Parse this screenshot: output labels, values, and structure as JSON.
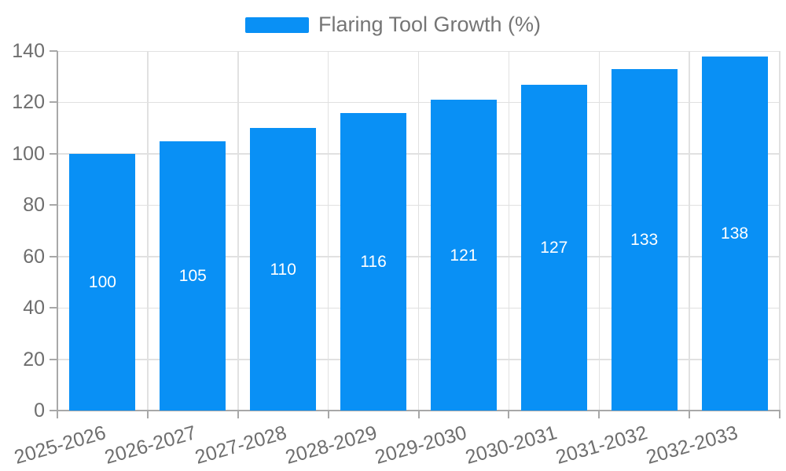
{
  "chart_data": {
    "type": "bar",
    "title": "Flaring Tool Growth (%)",
    "legend": {
      "label": "Flaring Tool Growth (%)",
      "position": "top-center"
    },
    "categories": [
      "2025-2026",
      "2026-2027",
      "2027-2028",
      "2028-2029",
      "2029-2030",
      "2030-2031",
      "2031-2032",
      "2032-2033"
    ],
    "series": [
      {
        "name": "Flaring Tool Growth (%)",
        "values": [
          100,
          105,
          110,
          116,
          121,
          127,
          133,
          138
        ]
      }
    ],
    "value_labels": [
      "100",
      "105",
      "110",
      "116",
      "121",
      "127",
      "133",
      "138"
    ],
    "xlabel": "",
    "ylabel": "",
    "ylim": [
      0,
      140
    ],
    "yticks": [
      0,
      20,
      40,
      60,
      80,
      100,
      120,
      140
    ],
    "grid": true,
    "colors": {
      "bar": "#0990f5",
      "grid": "#e1e1e1",
      "axis": "#a8a8a8",
      "tick_text": "#6e6e6e",
      "legend_text": "#757575",
      "value_label": "#ffffff"
    }
  }
}
